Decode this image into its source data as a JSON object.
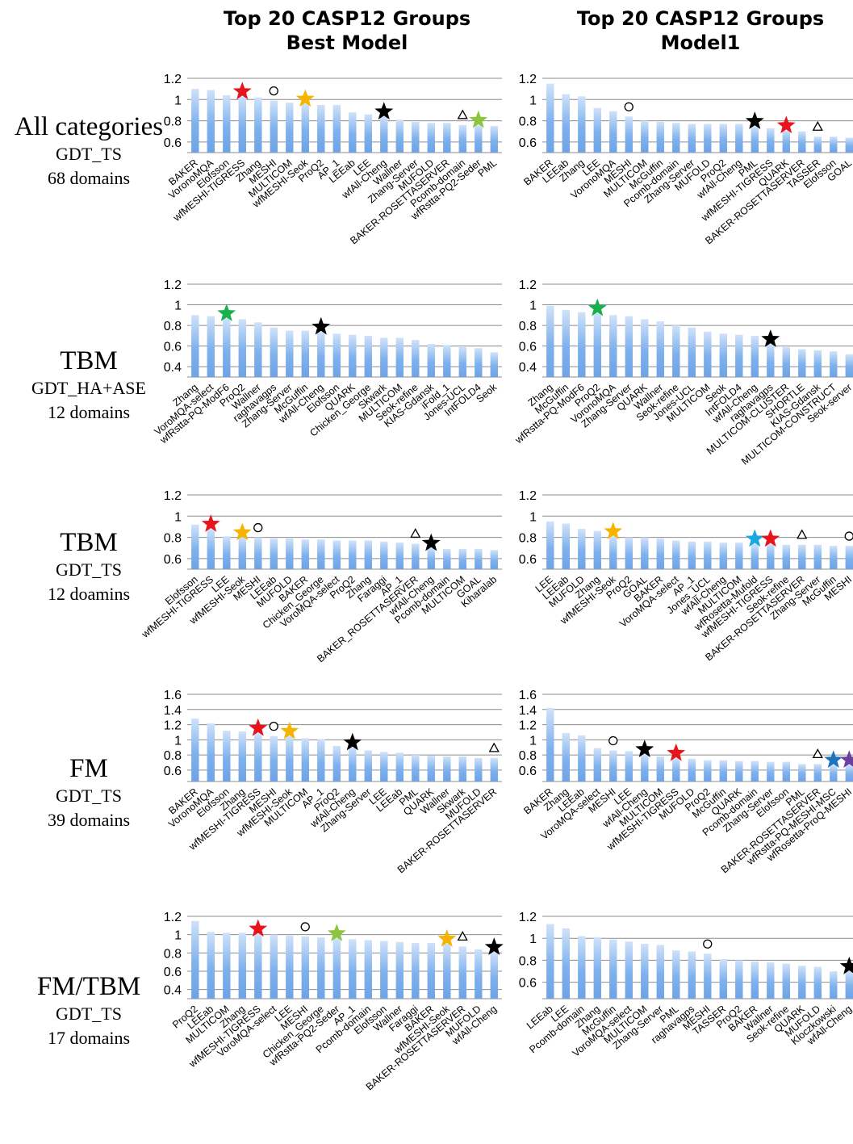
{
  "column_titles": [
    {
      "line1": "Top 20 CASP12 Groups",
      "line2": "Best Model"
    },
    {
      "line1": "Top 20 CASP12 Groups",
      "line2": "Model1"
    }
  ],
  "row_labels": [
    {
      "main": "All categories",
      "metric": "GDT_TS",
      "domains": "68 domains"
    },
    {
      "main": "TBM",
      "metric": "GDT_HA+ASE",
      "domains": "12 domains"
    },
    {
      "main": "TBM",
      "metric": "GDT_TS",
      "domains": "12 doamins"
    },
    {
      "main": "FM",
      "metric": "GDT_TS",
      "domains": "39 domains"
    },
    {
      "main": "FM/TBM",
      "metric": "GDT_TS",
      "domains": "17 domains"
    }
  ],
  "marker_colors": {
    "red": "#e8141c",
    "orange": "#f5b400",
    "green": "#18b04a",
    "lightgreen": "#8cc63f",
    "black": "#000000",
    "cyan": "#19a8e0",
    "blue": "#1e73be",
    "purple": "#6b3fa0"
  },
  "bar_color": "#7fb1ec",
  "chart_data": [
    {
      "type": "bar",
      "row": 0,
      "col": 0,
      "ylim": [
        0.5,
        1.2
      ],
      "yticks": [
        "1.2",
        "1",
        "0.8",
        "0.6"
      ],
      "categories": [
        "BAKER",
        "VoronoMQA",
        "Elofsson",
        "wfMESHI-TIGRESS",
        "Zhang",
        "MESHI",
        "MULTICOM",
        "wfMESHI-Seok",
        "ProQ2",
        "AP_1",
        "LEEab",
        "LEE",
        "wfAll-Cheng",
        "Wallner",
        "Zhang-Server",
        "MUFOLD",
        "BAKER-ROSETTASERVER",
        "Pcomb-domain",
        "wfRstta-PQ2-Seder",
        "PML"
      ],
      "values": [
        1.1,
        1.09,
        1.04,
        1.03,
        1.02,
        0.99,
        0.97,
        0.96,
        0.95,
        0.95,
        0.88,
        0.86,
        0.84,
        0.81,
        0.79,
        0.78,
        0.78,
        0.76,
        0.76,
        0.75
      ],
      "markers": [
        {
          "index": 3,
          "shape": "star",
          "color": "red"
        },
        {
          "index": 5,
          "shape": "circle"
        },
        {
          "index": 7,
          "shape": "star",
          "color": "orange"
        },
        {
          "index": 12,
          "shape": "star",
          "color": "black"
        },
        {
          "index": 17,
          "shape": "triangle"
        },
        {
          "index": 18,
          "shape": "star",
          "color": "lightgreen"
        }
      ]
    },
    {
      "type": "bar",
      "row": 0,
      "col": 1,
      "ylim": [
        0.5,
        1.2
      ],
      "yticks": [
        "1.2",
        "1",
        "0.8",
        "0.6"
      ],
      "categories": [
        "BAKER",
        "LEEab",
        "Zhang",
        "LEE",
        "VoronoMQA",
        "MESHI",
        "MULTICOM",
        "McGuffin",
        "Pcomb-domain",
        "Zhang-Server",
        "MUFOLD",
        "ProQ2",
        "wfAll-Cheng",
        "PML",
        "wfMESHI-TIGRESS",
        "QUARK",
        "BAKER-ROSETTASERVER",
        "TASSER",
        "Elofsson",
        "GOAL"
      ],
      "values": [
        1.15,
        1.05,
        1.03,
        0.92,
        0.89,
        0.84,
        0.8,
        0.79,
        0.78,
        0.77,
        0.77,
        0.77,
        0.77,
        0.75,
        0.73,
        0.71,
        0.7,
        0.65,
        0.65,
        0.64
      ],
      "markers": [
        {
          "index": 5,
          "shape": "circle"
        },
        {
          "index": 13,
          "shape": "star",
          "color": "black"
        },
        {
          "index": 15,
          "shape": "star",
          "color": "red"
        },
        {
          "index": 17,
          "shape": "triangle"
        }
      ]
    },
    {
      "type": "bar",
      "row": 1,
      "col": 0,
      "ylim": [
        0.3,
        1.2
      ],
      "yticks": [
        "1.2",
        "1",
        "0.8",
        "0.6",
        "0.4"
      ],
      "categories": [
        "Zhang",
        "VoroMQA-select",
        "wfRstta-PQ-ModF6",
        "ProQ2",
        "Wallner",
        "raghavagps",
        "Zhang-Server",
        "McGuffin",
        "wfAll-Cheng",
        "Elofsson",
        "QUARK",
        "Chicken_George",
        "Skwark",
        "MULTICOM",
        "Seok-refine",
        "KIAS-Gdansk",
        "iFold_1",
        "Jones-UCL",
        "IntFOLD4",
        "Seok"
      ],
      "values": [
        0.9,
        0.89,
        0.87,
        0.86,
        0.83,
        0.78,
        0.75,
        0.75,
        0.74,
        0.72,
        0.71,
        0.7,
        0.68,
        0.68,
        0.66,
        0.62,
        0.61,
        0.59,
        0.58,
        0.54
      ],
      "markers": [
        {
          "index": 2,
          "shape": "star",
          "color": "green"
        },
        {
          "index": 8,
          "shape": "star",
          "color": "black"
        }
      ]
    },
    {
      "type": "bar",
      "row": 1,
      "col": 1,
      "ylim": [
        0.3,
        1.2
      ],
      "yticks": [
        "1.2",
        "1",
        "0.8",
        "0.6",
        "0.4"
      ],
      "categories": [
        "Zhang",
        "McGuffin",
        "wfRstta-PQ-ModF6",
        "ProQ2",
        "VoronoMQA",
        "Zhang-Server",
        "QUARK",
        "Wallner",
        "Seok-refine",
        "Jones-UCL",
        "MULTICOM",
        "Seok",
        "IntFOLD4",
        "wfAll-Cheng",
        "raghavagps",
        "MULTICOM-CLUSTER",
        "SHORTLE",
        "KIAS-Gdansk",
        "MULTICOM-CONSTRUCT",
        "Seok-server"
      ],
      "values": [
        0.99,
        0.95,
        0.93,
        0.92,
        0.9,
        0.89,
        0.86,
        0.84,
        0.8,
        0.78,
        0.74,
        0.72,
        0.71,
        0.7,
        0.62,
        0.59,
        0.57,
        0.56,
        0.55,
        0.52
      ],
      "markers": [
        {
          "index": 3,
          "shape": "star",
          "color": "green"
        },
        {
          "index": 14,
          "shape": "star",
          "color": "black"
        }
      ]
    },
    {
      "type": "bar",
      "row": 2,
      "col": 0,
      "ylim": [
        0.5,
        1.2
      ],
      "yticks": [
        "1.2",
        "1",
        "0.8",
        "0.6"
      ],
      "categories": [
        "Elofsson",
        "wfMESHI-TIGRESS",
        "LEE",
        "wfMESHI-Seok",
        "MESHI",
        "LEEab",
        "MUFOLD",
        "BAKER",
        "Chicken_George",
        "VoroMQA-select",
        "ProQ2",
        "Zhang",
        "Faraggi",
        "AP_1",
        "BAKER_ROSETTASERVER",
        "wfAll-Cheng",
        "Pcomb-domain",
        "MULTICOM",
        "GOAL",
        "Kiharalab"
      ],
      "values": [
        0.92,
        0.88,
        0.81,
        0.8,
        0.8,
        0.79,
        0.79,
        0.78,
        0.78,
        0.77,
        0.77,
        0.77,
        0.76,
        0.75,
        0.74,
        0.7,
        0.69,
        0.69,
        0.69,
        0.68
      ],
      "markers": [
        {
          "index": 1,
          "shape": "star",
          "color": "red"
        },
        {
          "index": 3,
          "shape": "star",
          "color": "orange"
        },
        {
          "index": 4,
          "shape": "circle"
        },
        {
          "index": 14,
          "shape": "triangle"
        },
        {
          "index": 15,
          "shape": "star",
          "color": "black"
        }
      ]
    },
    {
      "type": "bar",
      "row": 2,
      "col": 1,
      "ylim": [
        0.5,
        1.2
      ],
      "yticks": [
        "1.2",
        "1",
        "0.8",
        "0.6"
      ],
      "categories": [
        "LEE",
        "LEEab",
        "MUFOLD",
        "Zhang",
        "wfMESHI-Seok",
        "ProQ2",
        "GOAL",
        "BAKER",
        "VoroMQA-select",
        "AP_1",
        "Jones_UCL",
        "wfAll-Cheng",
        "MULTICOM",
        "wfRosetta-Mufold",
        "wfMESHI-TIGRESS",
        "Seok-refine",
        "BAKER-ROSETTASERVER",
        "Zhang-Server",
        "McGuffin",
        "MESHI"
      ],
      "values": [
        0.95,
        0.93,
        0.88,
        0.86,
        0.81,
        0.8,
        0.8,
        0.79,
        0.77,
        0.76,
        0.76,
        0.75,
        0.75,
        0.74,
        0.74,
        0.73,
        0.73,
        0.73,
        0.72,
        0.72
      ],
      "markers": [
        {
          "index": 4,
          "shape": "star",
          "color": "orange"
        },
        {
          "index": 13,
          "shape": "star",
          "color": "cyan"
        },
        {
          "index": 14,
          "shape": "star",
          "color": "red"
        },
        {
          "index": 16,
          "shape": "triangle"
        },
        {
          "index": 19,
          "shape": "circle"
        }
      ]
    },
    {
      "type": "bar",
      "row": 3,
      "col": 0,
      "ylim": [
        0.45,
        1.6
      ],
      "yticks": [
        "1.6",
        "1.4",
        "1.2",
        "1",
        "0.8",
        "0.6"
      ],
      "categories": [
        "BAKER",
        "VoronoMQA",
        "Elofsson",
        "Zhang",
        "wfMESHI-TIGRESS",
        "MESHI",
        "wfMESHI-Seok",
        "MULTICOM",
        "AP_1",
        "ProQ2",
        "wfAll-Cheng",
        "Zhang-Server",
        "LEE",
        "LEEab",
        "PML",
        "QUARK",
        "Wallner",
        "Skwark",
        "MUFOLD",
        "BAKER-ROSETTASERVER"
      ],
      "values": [
        1.28,
        1.22,
        1.12,
        1.11,
        1.09,
        1.05,
        1.05,
        1.02,
        1.01,
        0.92,
        0.9,
        0.86,
        0.84,
        0.83,
        0.8,
        0.79,
        0.78,
        0.78,
        0.76,
        0.76
      ],
      "markers": [
        {
          "index": 4,
          "shape": "star",
          "color": "red"
        },
        {
          "index": 5,
          "shape": "circle"
        },
        {
          "index": 6,
          "shape": "star",
          "color": "orange"
        },
        {
          "index": 10,
          "shape": "star",
          "color": "black"
        },
        {
          "index": 19,
          "shape": "triangle"
        }
      ]
    },
    {
      "type": "bar",
      "row": 3,
      "col": 1,
      "ylim": [
        0.45,
        1.6
      ],
      "yticks": [
        "1.6",
        "1.4",
        "1.2",
        "1",
        "0.8",
        "0.6"
      ],
      "categories": [
        "BAKER",
        "Zhang",
        "LEEab",
        "VoroMQA-select",
        "MESHI",
        "LEE",
        "wfAll-Cheng",
        "MULTICOM",
        "wfMESHI-TIGRESS",
        "MUFOLD",
        "ProQ2",
        "McGuffin",
        "QUARK",
        "Pcomb-domain",
        "Zhang-Server",
        "Elofsson",
        "PML",
        "BAKER-ROSETTASERVER",
        "wfRstta-PQ-MESHI-MSC",
        "wfRosetta-ProQ-MESHI"
      ],
      "values": [
        1.42,
        1.09,
        1.06,
        0.89,
        0.86,
        0.85,
        0.81,
        0.78,
        0.76,
        0.75,
        0.73,
        0.73,
        0.72,
        0.72,
        0.71,
        0.71,
        0.68,
        0.68,
        0.67,
        0.67
      ],
      "markers": [
        {
          "index": 4,
          "shape": "circle"
        },
        {
          "index": 6,
          "shape": "star",
          "color": "black"
        },
        {
          "index": 8,
          "shape": "star",
          "color": "red"
        },
        {
          "index": 17,
          "shape": "triangle"
        },
        {
          "index": 18,
          "shape": "star",
          "color": "blue"
        },
        {
          "index": 19,
          "shape": "star",
          "color": "purple"
        }
      ]
    },
    {
      "type": "bar",
      "row": 4,
      "col": 0,
      "ylim": [
        0.3,
        1.2
      ],
      "yticks": [
        "1.2",
        "1",
        "0.8",
        "0.6",
        "0.4"
      ],
      "categories": [
        "ProQ2",
        "LEEab",
        "MULTICOM",
        "Zhang",
        "wfMESHI-TIGRESS",
        "VoroMQA-select",
        "LEE",
        "MESHI",
        "Chicken_George",
        "wfRstta-PQ2-Seder",
        "AP_1",
        "Pcomb-domain",
        "Elofsson",
        "Wallner",
        "Faraggi",
        "BAKER",
        "wfMESHI-Seok",
        "BAKER-ROSETTASERVER",
        "MUFOLD",
        "wfAll-Cheng"
      ],
      "values": [
        1.15,
        1.03,
        1.02,
        1.02,
        1.01,
        1.0,
        0.99,
        0.98,
        0.97,
        0.96,
        0.95,
        0.94,
        0.93,
        0.92,
        0.91,
        0.91,
        0.9,
        0.87,
        0.84,
        0.81
      ],
      "markers": [
        {
          "index": 4,
          "shape": "star",
          "color": "red"
        },
        {
          "index": 7,
          "shape": "circle"
        },
        {
          "index": 9,
          "shape": "star",
          "color": "lightgreen"
        },
        {
          "index": 16,
          "shape": "star",
          "color": "orange"
        },
        {
          "index": 17,
          "shape": "triangle"
        },
        {
          "index": 19,
          "shape": "star",
          "color": "black"
        }
      ]
    },
    {
      "type": "bar",
      "row": 4,
      "col": 1,
      "ylim": [
        0.45,
        1.2
      ],
      "yticks": [
        "1.2",
        "1",
        "0.8",
        "0.6"
      ],
      "categories": [
        "LEEab",
        "LEE",
        "Pcomb-domain",
        "Zhang",
        "McGuffin",
        "VoroMQA-select",
        "MULTICOM",
        "Zhang-Server",
        "PML",
        "raghavagps",
        "MESHI",
        "TASSER",
        "ProQ2",
        "BAKER",
        "Wallner",
        "Seok-refine",
        "QUARK",
        "MUFOLD",
        "Kloczkowski",
        "wfAll-Cheng"
      ],
      "values": [
        1.13,
        1.09,
        1.02,
        1.01,
        0.99,
        0.97,
        0.95,
        0.94,
        0.89,
        0.88,
        0.86,
        0.81,
        0.8,
        0.79,
        0.78,
        0.77,
        0.75,
        0.74,
        0.7,
        0.7
      ],
      "markers": [
        {
          "index": 10,
          "shape": "circle"
        },
        {
          "index": 19,
          "shape": "star",
          "color": "black"
        }
      ]
    }
  ]
}
